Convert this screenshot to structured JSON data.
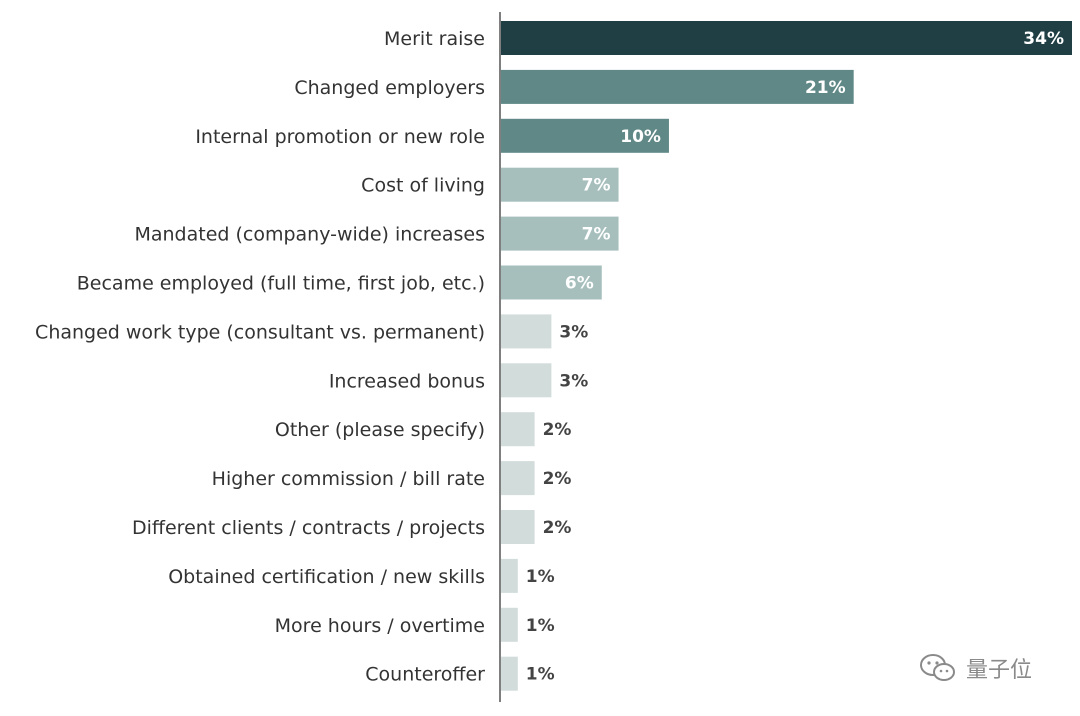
{
  "chart_data": {
    "type": "bar",
    "orientation": "horizontal",
    "title": "",
    "xlabel": "",
    "ylabel": "",
    "xlim": [
      0,
      34
    ],
    "grid": false,
    "legend": "none",
    "categories": [
      "Merit raise",
      "Changed employers",
      "Internal promotion or new role",
      "Cost of living",
      "Mandated (company-wide) increases",
      "Became employed (full time, first job, etc.)",
      "Changed work type (consultant vs. permanent)",
      "Increased bonus",
      "Other (please specify)",
      "Higher commission / bill rate",
      "Different clients / contracts / projects",
      "Obtained certification / new skills",
      "More hours / overtime",
      "Counteroffer"
    ],
    "values": [
      34,
      21,
      10,
      7,
      7,
      6,
      3,
      3,
      2,
      2,
      2,
      1,
      1,
      1
    ],
    "value_labels": [
      "34%",
      "21%",
      "10%",
      "7%",
      "7%",
      "6%",
      "3%",
      "3%",
      "2%",
      "2%",
      "2%",
      "1%",
      "1%",
      "1%"
    ],
    "colors": {
      "top": "#1f3f45",
      "high": "#5f8886",
      "mid": "#a6bfbd",
      "low": "#d1dcdb",
      "axis": "#555555",
      "outside_label": "#444444",
      "inside_label": "#ffffff"
    }
  },
  "watermark": {
    "text": "量子位",
    "icon": "wechat-icon"
  }
}
